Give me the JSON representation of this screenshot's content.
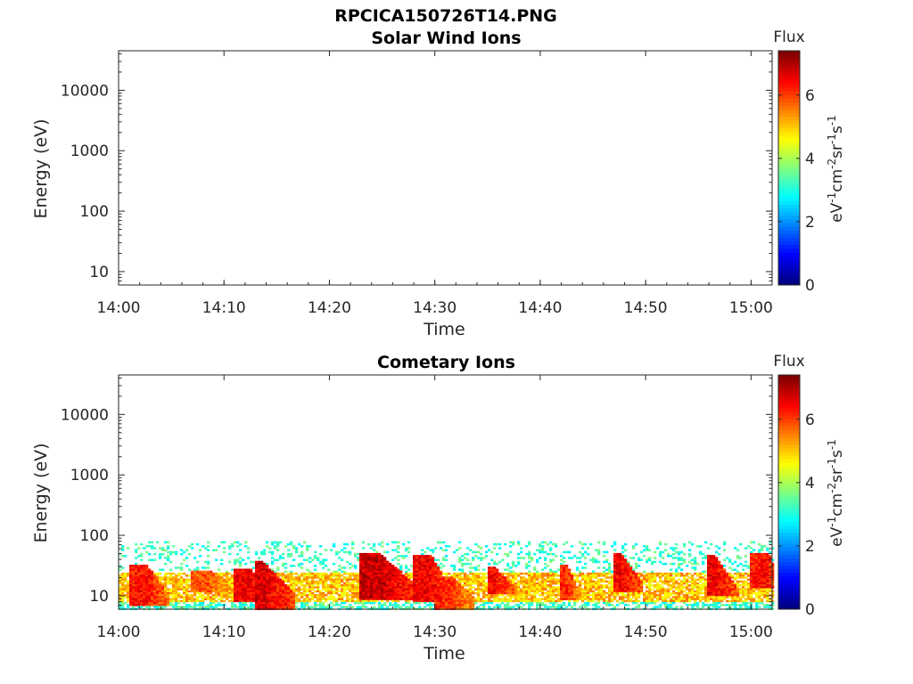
{
  "figure": {
    "title": "RPCICA150726T14.PNG"
  },
  "chart_data": [
    {
      "type": "heatmap",
      "title": "Solar Wind Ions",
      "xlabel": "Time",
      "ylabel": "Energy (eV)",
      "x_ticks": [
        "14:00",
        "14:10",
        "14:20",
        "14:30",
        "14:40",
        "14:50",
        "15:00"
      ],
      "y_ticks": [
        "10",
        "100",
        "1000",
        "10000"
      ],
      "y_scale": "log",
      "xlim": [
        "14:00",
        "15:02"
      ],
      "ylim": [
        6,
        45000
      ],
      "colorbar": {
        "title": "Flux",
        "label": "eV-1cm-2sr-1s-1",
        "ticks": [
          "0",
          "2",
          "4",
          "6"
        ],
        "range": [
          0,
          7.4
        ],
        "colormap": "jet"
      },
      "grid": false,
      "events": []
    },
    {
      "type": "heatmap",
      "title": "Cometary Ions",
      "xlabel": "Time",
      "ylabel": "Energy (eV)",
      "x_ticks": [
        "14:00",
        "14:10",
        "14:20",
        "14:30",
        "14:40",
        "14:50",
        "15:00"
      ],
      "y_ticks": [
        "10",
        "100",
        "1000",
        "10000"
      ],
      "y_scale": "log",
      "xlim": [
        "14:00",
        "15:02"
      ],
      "ylim": [
        6,
        45000
      ],
      "colorbar": {
        "title": "Flux",
        "label": "eV-1cm-2sr-1s-1",
        "ticks": [
          "0",
          "2",
          "4",
          "6"
        ],
        "range": [
          0,
          7.4
        ],
        "colormap": "jet"
      },
      "grid": false,
      "background_band": {
        "e_low": 6,
        "e_high": 80,
        "level": 3.2
      },
      "core_band": {
        "e_low": 8,
        "e_high": 25,
        "level": 5.0
      },
      "events": [
        {
          "start": "14:01",
          "peak": "14:02",
          "end": "14:04",
          "e_top": 35,
          "e_bottom": 7,
          "intensity": 6.8
        },
        {
          "start": "14:07",
          "peak": "14:08",
          "end": "14:10",
          "e_top": 28,
          "e_bottom": 12,
          "intensity": 6.3
        },
        {
          "start": "14:11",
          "peak": "14:12",
          "end": "14:13",
          "e_top": 30,
          "e_bottom": 8,
          "intensity": 7.0
        },
        {
          "start": "14:13",
          "peak": "14:13",
          "end": "14:16",
          "e_top": 40,
          "e_bottom": 6,
          "intensity": 7.2
        },
        {
          "start": "14:23",
          "peak": "14:24",
          "end": "14:28",
          "e_top": 55,
          "e_bottom": 9,
          "intensity": 7.3
        },
        {
          "start": "14:28",
          "peak": "14:29",
          "end": "14:31",
          "e_top": 50,
          "e_bottom": 8,
          "intensity": 7.0
        },
        {
          "start": "14:30",
          "peak": "14:31",
          "end": "14:33",
          "e_top": 22,
          "e_bottom": 6,
          "intensity": 6.5
        },
        {
          "start": "14:35",
          "peak": "14:35",
          "end": "14:37",
          "e_top": 32,
          "e_bottom": 11,
          "intensity": 6.9
        },
        {
          "start": "14:42",
          "peak": "14:42",
          "end": "14:43",
          "e_top": 33,
          "e_bottom": 9,
          "intensity": 6.6
        },
        {
          "start": "14:47",
          "peak": "14:47",
          "end": "14:49",
          "e_top": 55,
          "e_bottom": 12,
          "intensity": 7.0
        },
        {
          "start": "14:56",
          "peak": "14:56",
          "end": "14:58",
          "e_top": 48,
          "e_bottom": 10,
          "intensity": 7.0
        },
        {
          "start": "15:00",
          "peak": "15:01",
          "end": "15:02",
          "e_top": 55,
          "e_bottom": 14,
          "intensity": 6.8
        }
      ]
    }
  ]
}
